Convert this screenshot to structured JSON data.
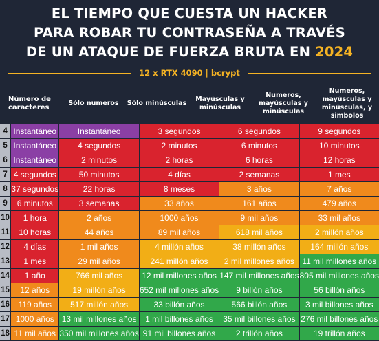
{
  "title": {
    "line1": "EL TIEMPO QUE CUESTA UN HACKER",
    "line2": "PARA ROBAR TU CONTRASEÑA A TRAVÉS",
    "line3_prefix": "DE UN ATAQUE DE FUERZA BRUTA EN ",
    "year": "2024"
  },
  "subtitle": "12 x RTX 4090 | bcrypt",
  "colors": {
    "background": "#1f2636",
    "accent": "#f5b324",
    "instant": "#8b3fa5",
    "red": "#d9232e",
    "orange": "#f08a1c",
    "yellow": "#f2ae16",
    "green": "#31a84a",
    "row_label": "#b8bcc5"
  },
  "columns": [
    "Número de\ncaracteres",
    "Sólo numeros",
    "Sólo minúsculas",
    "Mayúsculas y\nminúsculas",
    "Numeros,\nmayúsculas y\nminúsculas",
    "Numeros,\nmayúsculas y\nminúsculas, y\nsimbolos"
  ],
  "rows": [
    {
      "chars": "4",
      "cells": [
        {
          "t": "Instantáneo",
          "c": "purple"
        },
        {
          "t": "Instantáneo",
          "c": "purple"
        },
        {
          "t": "3 segundos",
          "c": "red"
        },
        {
          "t": "6 segundos",
          "c": "red"
        },
        {
          "t": "9 segundos",
          "c": "red"
        }
      ]
    },
    {
      "chars": "5",
      "cells": [
        {
          "t": "Instantáneo",
          "c": "purple"
        },
        {
          "t": "4 segundos",
          "c": "red"
        },
        {
          "t": "2 minutos",
          "c": "red"
        },
        {
          "t": "6 minutos",
          "c": "red"
        },
        {
          "t": "10 minutos",
          "c": "red"
        }
      ]
    },
    {
      "chars": "6",
      "cells": [
        {
          "t": "Instantáneo",
          "c": "purple"
        },
        {
          "t": "2 minutos",
          "c": "red"
        },
        {
          "t": "2 horas",
          "c": "red"
        },
        {
          "t": "6 horas",
          "c": "red"
        },
        {
          "t": "12 horas",
          "c": "red"
        }
      ]
    },
    {
      "chars": "7",
      "cells": [
        {
          "t": "4 segundos",
          "c": "red"
        },
        {
          "t": "50 minutos",
          "c": "red"
        },
        {
          "t": "4 días",
          "c": "red"
        },
        {
          "t": "2 semanas",
          "c": "red"
        },
        {
          "t": "1 mes",
          "c": "red"
        }
      ]
    },
    {
      "chars": "8",
      "cells": [
        {
          "t": "37 segundos",
          "c": "red"
        },
        {
          "t": "22 horas",
          "c": "red"
        },
        {
          "t": "8 meses",
          "c": "red"
        },
        {
          "t": "3 años",
          "c": "orange"
        },
        {
          "t": "7 años",
          "c": "orange"
        }
      ]
    },
    {
      "chars": "9",
      "cells": [
        {
          "t": "6 minutos",
          "c": "red"
        },
        {
          "t": "3 semanas",
          "c": "red"
        },
        {
          "t": "33 años",
          "c": "orange"
        },
        {
          "t": "161 años",
          "c": "orange"
        },
        {
          "t": "479 años",
          "c": "orange"
        }
      ]
    },
    {
      "chars": "10",
      "cells": [
        {
          "t": "1 hora",
          "c": "red"
        },
        {
          "t": "2 años",
          "c": "orange"
        },
        {
          "t": "1000 años",
          "c": "orange"
        },
        {
          "t": "9 mil años",
          "c": "orange"
        },
        {
          "t": "33 mil años",
          "c": "orange"
        }
      ]
    },
    {
      "chars": "11",
      "cells": [
        {
          "t": "10 horas",
          "c": "red"
        },
        {
          "t": "44 años",
          "c": "orange"
        },
        {
          "t": "89 mil años",
          "c": "orange"
        },
        {
          "t": "618 mil años",
          "c": "yellow"
        },
        {
          "t": "2 millón años",
          "c": "yellow"
        }
      ]
    },
    {
      "chars": "12",
      "cells": [
        {
          "t": "4 días",
          "c": "red"
        },
        {
          "t": "1 mil años",
          "c": "orange"
        },
        {
          "t": "4 millón años",
          "c": "yellow"
        },
        {
          "t": "38 millón años",
          "c": "yellow"
        },
        {
          "t": "164 millón años",
          "c": "yellow"
        }
      ]
    },
    {
      "chars": "13",
      "cells": [
        {
          "t": "1 mes",
          "c": "red"
        },
        {
          "t": "29 mil años",
          "c": "orange"
        },
        {
          "t": "241 millón años",
          "c": "yellow"
        },
        {
          "t": "2 mil millones años",
          "c": "yellow",
          "sm": true
        },
        {
          "t": "11 mil millones años",
          "c": "green",
          "sm": true
        }
      ]
    },
    {
      "chars": "14",
      "cells": [
        {
          "t": "1 año",
          "c": "red"
        },
        {
          "t": "766 mil años",
          "c": "yellow"
        },
        {
          "t": "12 mil millones años",
          "c": "green",
          "sm": true
        },
        {
          "t": "147 mil millones años",
          "c": "green",
          "sm": true
        },
        {
          "t": "805 mil millones años",
          "c": "green",
          "sm": true
        }
      ]
    },
    {
      "chars": "15",
      "cells": [
        {
          "t": "12 años",
          "c": "orange"
        },
        {
          "t": "19 millón años",
          "c": "yellow"
        },
        {
          "t": "652 mil millones años",
          "c": "green",
          "sm": true
        },
        {
          "t": "9 billón años",
          "c": "green",
          "sm": true
        },
        {
          "t": "56 billón años",
          "c": "green",
          "sm": true
        }
      ]
    },
    {
      "chars": "16",
      "cells": [
        {
          "t": "119 años",
          "c": "orange"
        },
        {
          "t": "517 millón años",
          "c": "yellow"
        },
        {
          "t": "33 billón años",
          "c": "green",
          "sm": true
        },
        {
          "t": "566 billón años",
          "c": "green",
          "sm": true
        },
        {
          "t": "3 mil billones años",
          "c": "green",
          "sm": true
        }
      ]
    },
    {
      "chars": "17",
      "cells": [
        {
          "t": "1000 años",
          "c": "orange"
        },
        {
          "t": "13 mil millones años",
          "c": "green",
          "sm": true
        },
        {
          "t": "1 mil billones años",
          "c": "green",
          "sm": true
        },
        {
          "t": "35 mil billones años",
          "c": "green",
          "sm": true
        },
        {
          "t": "276 mil billones años",
          "c": "green",
          "sm": true
        }
      ]
    },
    {
      "chars": "18",
      "cells": [
        {
          "t": "11 mil años",
          "c": "orange"
        },
        {
          "t": "350 mil millones años",
          "c": "green",
          "sm": true
        },
        {
          "t": "91 mil billones años",
          "c": "green",
          "sm": true
        },
        {
          "t": "2 trillón años",
          "c": "green",
          "sm": true
        },
        {
          "t": "19 trillón años",
          "c": "green",
          "sm": true
        }
      ]
    }
  ]
}
